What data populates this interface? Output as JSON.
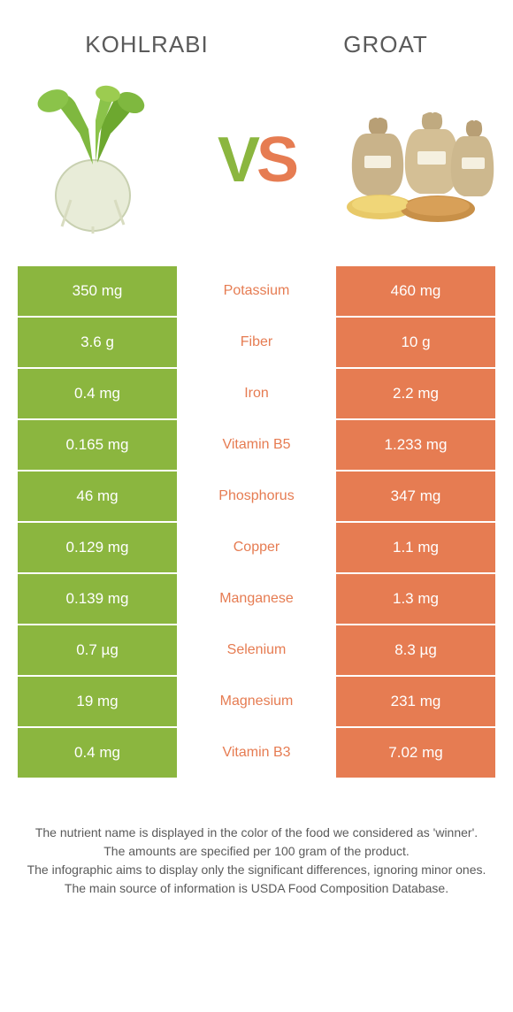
{
  "header": {
    "left_title": "KOHLRABI",
    "right_title": "GROAT",
    "vs_v": "V",
    "vs_s": "S"
  },
  "colors": {
    "left": "#8bb63f",
    "right": "#e67c52",
    "mid_text_left_winner": "#8bb63f",
    "mid_text_right_winner": "#e67c52",
    "white": "#ffffff",
    "grey": "#5a5a5a"
  },
  "rows": [
    {
      "left": "350 mg",
      "label": "Potassium",
      "right": "460 mg",
      "winner": "right"
    },
    {
      "left": "3.6 g",
      "label": "Fiber",
      "right": "10 g",
      "winner": "right"
    },
    {
      "left": "0.4 mg",
      "label": "Iron",
      "right": "2.2 mg",
      "winner": "right"
    },
    {
      "left": "0.165 mg",
      "label": "Vitamin B5",
      "right": "1.233 mg",
      "winner": "right"
    },
    {
      "left": "46 mg",
      "label": "Phosphorus",
      "right": "347 mg",
      "winner": "right"
    },
    {
      "left": "0.129 mg",
      "label": "Copper",
      "right": "1.1 mg",
      "winner": "right"
    },
    {
      "left": "0.139 mg",
      "label": "Manganese",
      "right": "1.3 mg",
      "winner": "right"
    },
    {
      "left": "0.7 µg",
      "label": "Selenium",
      "right": "8.3 µg",
      "winner": "right"
    },
    {
      "left": "19 mg",
      "label": "Magnesium",
      "right": "231 mg",
      "winner": "right"
    },
    {
      "left": "0.4 mg",
      "label": "Vitamin B3",
      "right": "7.02 mg",
      "winner": "right"
    }
  ],
  "footer": {
    "line1": "The nutrient name is displayed in the color of the food we considered as 'winner'.",
    "line2": "The amounts are specified per 100 gram of the product.",
    "line3": "The infographic aims to display only the significant differences, ignoring minor ones.",
    "line4": "The main source of information is USDA Food Composition Database."
  }
}
